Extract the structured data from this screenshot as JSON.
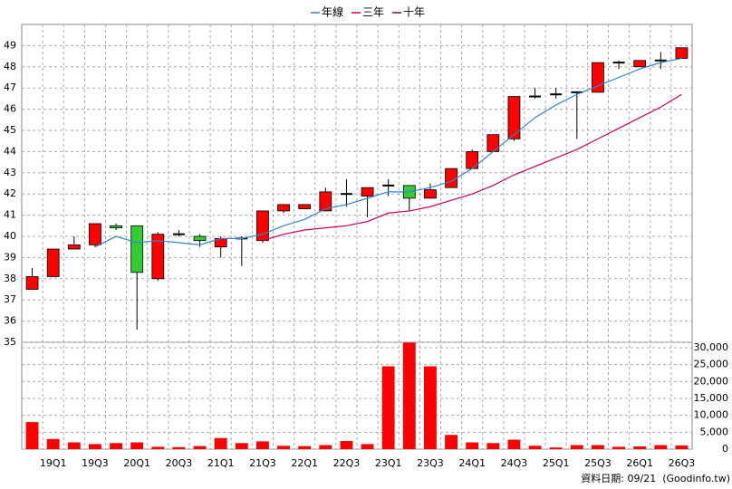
{
  "chart_data": [
    {
      "type": "candlestick",
      "categories": [
        null,
        "19Q1",
        null,
        "19Q3",
        null,
        "20Q1",
        null,
        "20Q3",
        null,
        "21Q1",
        null,
        "21Q3",
        null,
        "22Q1",
        null,
        "22Q3",
        null,
        "23Q1",
        null,
        "23Q3",
        null,
        "24Q1",
        null,
        "24Q3",
        null,
        "25Q1",
        null,
        "25Q3",
        null,
        "26Q1",
        null,
        "26Q3"
      ],
      "open": [
        37.5,
        38.1,
        39.4,
        39.6,
        40.5,
        40.5,
        38.0,
        40.1,
        40.0,
        39.5,
        39.9,
        39.8,
        41.2,
        41.3,
        41.2,
        42.0,
        41.9,
        42.4,
        42.4,
        41.8,
        42.3,
        43.2,
        44.0,
        44.6,
        46.6,
        46.7,
        46.8,
        46.8,
        48.2,
        48.0,
        48.3,
        48.4
      ],
      "high": [
        38.5,
        39.4,
        40.0,
        40.6,
        40.6,
        40.5,
        40.2,
        40.3,
        40.1,
        40.0,
        40.0,
        41.2,
        41.5,
        41.5,
        42.3,
        42.7,
        42.3,
        42.7,
        42.4,
        42.5,
        43.2,
        44.1,
        44.8,
        46.6,
        47.0,
        47.0,
        46.8,
        48.2,
        48.3,
        48.3,
        48.7,
        48.9
      ],
      "low": [
        37.5,
        38.1,
        39.4,
        39.5,
        40.3,
        35.6,
        37.9,
        40.0,
        39.5,
        39.0,
        38.6,
        39.7,
        41.1,
        41.3,
        41.2,
        41.4,
        40.9,
        41.9,
        41.2,
        41.8,
        42.3,
        43.2,
        44.0,
        44.5,
        46.5,
        46.5,
        44.6,
        46.8,
        47.9,
        48.0,
        47.9,
        48.4
      ],
      "close": [
        38.1,
        39.4,
        39.6,
        40.6,
        40.4,
        38.3,
        40.1,
        40.1,
        39.8,
        39.9,
        39.9,
        41.2,
        41.5,
        41.5,
        42.1,
        42.0,
        42.3,
        42.4,
        41.8,
        42.2,
        43.2,
        44.0,
        44.8,
        46.6,
        46.6,
        46.7,
        46.8,
        48.2,
        48.2,
        48.3,
        48.3,
        48.9
      ],
      "up_color": "#ff0000",
      "down_color": "#33cc33",
      "flat_color": "#000000",
      "series": [
        {
          "name": "年線",
          "color": "#2f86d0",
          "values": [
            null,
            null,
            null,
            39.5,
            40.0,
            39.7,
            39.8,
            39.7,
            39.6,
            39.9,
            39.9,
            40.1,
            40.5,
            40.8,
            41.3,
            41.5,
            41.8,
            42.1,
            42.1,
            42.3,
            42.6,
            43.2,
            44.0,
            44.8,
            45.6,
            46.2,
            46.7,
            47.1,
            47.5,
            47.9,
            48.2,
            48.4
          ]
        },
        {
          "name": "三年",
          "color": "#cc0066",
          "values": [
            null,
            null,
            null,
            null,
            null,
            null,
            null,
            null,
            null,
            null,
            null,
            39.8,
            40.1,
            40.3,
            40.4,
            40.5,
            40.7,
            41.1,
            41.2,
            41.4,
            41.7,
            42.0,
            42.4,
            42.9,
            43.3,
            43.7,
            44.1,
            44.6,
            45.1,
            45.6,
            46.1,
            46.7
          ]
        },
        {
          "name": "十年",
          "color": "#990033",
          "values": [
            null,
            null,
            null,
            null,
            null,
            null,
            null,
            null,
            null,
            null,
            null,
            null,
            null,
            null,
            null,
            null,
            null,
            null,
            null,
            null,
            null,
            null,
            null,
            null,
            null,
            null,
            null,
            null,
            null,
            null,
            null,
            null
          ]
        }
      ],
      "ylim": [
        35,
        50
      ],
      "yticks": [
        35,
        36,
        37,
        38,
        39,
        40,
        41,
        42,
        43,
        44,
        45,
        46,
        47,
        48,
        49
      ],
      "grid": true,
      "legend": "top"
    },
    {
      "type": "bar",
      "color": "#ff0000",
      "values": [
        8000,
        3000,
        2000,
        1500,
        1800,
        2000,
        700,
        600,
        900,
        3300,
        1800,
        2300,
        1000,
        900,
        1200,
        2400,
        1500,
        24500,
        31500,
        24500,
        4200,
        2000,
        1800,
        2800,
        1000,
        500,
        1200,
        1200,
        700,
        800,
        1200,
        1100
      ],
      "ylim": [
        0,
        31600
      ],
      "yticks": [
        0,
        {
          "value": 5000,
          "label": "5,000"
        },
        {
          "value": 10000,
          "label": "10,000"
        },
        {
          "value": 15000,
          "label": "15,000"
        },
        {
          "value": 20000,
          "label": "20,000"
        },
        {
          "value": 25000,
          "label": "25,000"
        },
        {
          "value": 30000,
          "label": "30,000"
        }
      ],
      "grid": true
    }
  ],
  "source": "資料日期: 09/21  (Goodinfo.tw)"
}
